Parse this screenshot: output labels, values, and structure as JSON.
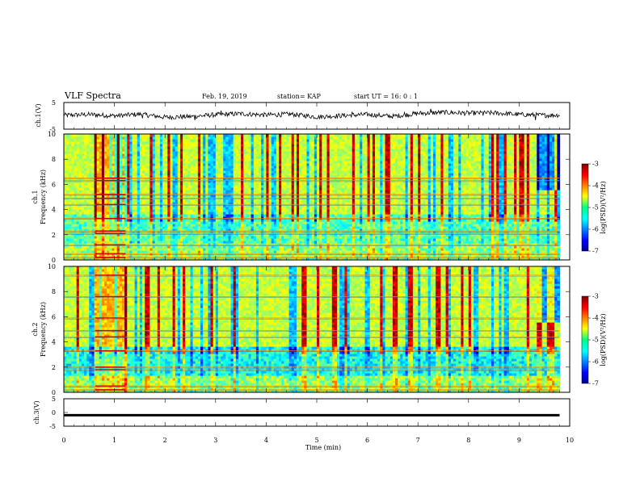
{
  "header": {
    "title": "VLF Spectra",
    "date": "Feb. 19, 2019",
    "station": "station= KAP",
    "start": "start  UT =   16: 0  : 1"
  },
  "chart_data": [
    {
      "type": "line",
      "id": "ch1-waveform",
      "ylabel": "ch.1(V)",
      "ylim": [
        -5,
        5
      ],
      "yticks": [
        "5",
        "-5"
      ],
      "x": [
        0,
        0.5,
        1,
        1.5,
        2,
        2.5,
        3,
        3.5,
        4,
        4.5,
        5,
        5.5,
        6,
        6.5,
        7,
        7.5,
        8,
        8.5,
        9,
        9.5,
        9.8
      ],
      "y": [
        0.2,
        0.5,
        0.0,
        0.6,
        -0.5,
        -0.3,
        0.4,
        0.8,
        0.3,
        0.6,
        -0.4,
        0.1,
        0.5,
        -0.2,
        0.9,
        1.3,
        1.0,
        1.1,
        0.5,
        0.2,
        0.3
      ]
    },
    {
      "type": "heatmap",
      "id": "ch1-spectrogram",
      "ylabel": "ch.1\nFrequency (kHz)",
      "ylabel_line1": "ch.1",
      "ylabel_line2": "Frequency (kHz)",
      "xlim": [
        0,
        10
      ],
      "ylim": [
        0,
        10
      ],
      "data_xlim": [
        0,
        9.8
      ],
      "yticks": [
        "0",
        "2",
        "4",
        "6",
        "8",
        "10"
      ],
      "colorbar": {
        "label": "log(PSD)(V²/Hz)",
        "range": [
          -7,
          -3
        ],
        "ticks": [
          "-3",
          "-4",
          "-5",
          "-6",
          "-7"
        ]
      },
      "horizontal_lines_khz": [
        0.2,
        0.5,
        1.2,
        2.1,
        2.3,
        3.3,
        4.4,
        4.9,
        5.2,
        6.3,
        6.5
      ]
    },
    {
      "type": "heatmap",
      "id": "ch2-spectrogram",
      "ylabel": "ch.2\nFrequency (kHz)",
      "ylabel_line1": "ch.2",
      "ylabel_line2": "Frequency (kHz)",
      "xlim": [
        0,
        10
      ],
      "ylim": [
        0,
        10
      ],
      "data_xlim": [
        0,
        9.8
      ],
      "yticks": [
        "0",
        "2",
        "4",
        "6",
        "8",
        "10"
      ],
      "colorbar": {
        "label": "log(PSD)(V²/Hz)",
        "range": [
          -7,
          -3
        ],
        "ticks": [
          "-3",
          "-4",
          "-5",
          "-6",
          "-7"
        ]
      },
      "horizontal_lines_khz": [
        0.2,
        0.5,
        1.8,
        2.0,
        3.3,
        4.4,
        4.9,
        5.9,
        7.6,
        9.3
      ]
    },
    {
      "type": "line",
      "id": "ch3-waveform",
      "ylabel": "ch.3(V)",
      "ylim": [
        -5,
        5
      ],
      "yticks": [
        "5",
        "0",
        "-5"
      ],
      "x": [
        0,
        9.8
      ],
      "y": [
        -1,
        -1
      ]
    }
  ],
  "xaxis": {
    "label": "Time  (min)",
    "ticks": [
      "0",
      "1",
      "2",
      "3",
      "4",
      "5",
      "6",
      "7",
      "8",
      "9",
      "10"
    ],
    "xlim": [
      0,
      10
    ]
  }
}
